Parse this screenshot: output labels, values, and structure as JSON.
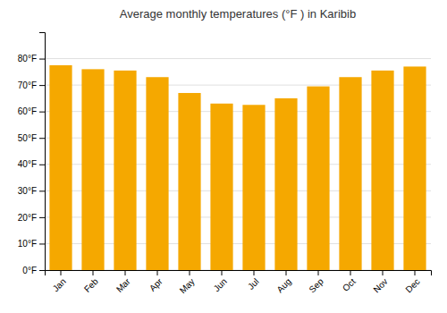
{
  "chart_data": {
    "type": "bar",
    "title": "Average monthly temperatures (°F ) in Karibib",
    "categories": [
      "Jan",
      "Feb",
      "Mar",
      "Apr",
      "May",
      "Jun",
      "Jul",
      "Aug",
      "Sep",
      "Oct",
      "Nov",
      "Dec"
    ],
    "values": [
      77.5,
      76.0,
      75.5,
      73.0,
      67.0,
      63.0,
      62.5,
      65.0,
      69.5,
      73.0,
      75.5,
      77.0
    ],
    "color": "#F5A800",
    "ylim": [
      0,
      90
    ],
    "yticks": [
      {
        "value": 0,
        "label": "0°F"
      },
      {
        "value": 10,
        "label": "10°F"
      },
      {
        "value": 20,
        "label": "20°F"
      },
      {
        "value": 30,
        "label": "30°F"
      },
      {
        "value": 40,
        "label": "40°F"
      },
      {
        "value": 50,
        "label": "50°F"
      },
      {
        "value": 60,
        "label": "60°F"
      },
      {
        "value": 70,
        "label": "70°F"
      },
      {
        "value": 80,
        "label": "80°F"
      }
    ],
    "grid": true
  }
}
